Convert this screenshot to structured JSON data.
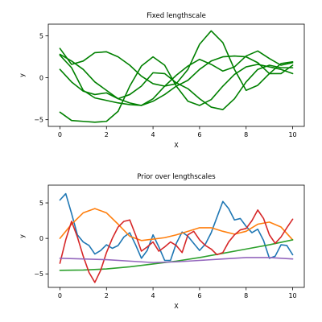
{
  "chart_data": [
    {
      "type": "line",
      "title": "Fixed lengthscale",
      "xlabel": "X",
      "ylabel": "y",
      "xlim": [
        -0.5,
        10.5
      ],
      "ylim": [
        -5.8,
        6.4
      ],
      "xticks": [
        0,
        2,
        4,
        6,
        8,
        10
      ],
      "yticks": [
        -5,
        0,
        5
      ],
      "grid": false,
      "x": [
        0,
        0.5,
        1,
        1.5,
        2,
        2.5,
        3,
        3.5,
        4,
        4.5,
        5,
        5.5,
        6,
        6.5,
        7,
        7.5,
        8,
        8.5,
        9,
        9.5,
        10
      ],
      "series": [
        {
          "color": "#008000",
          "values": [
            -4.1,
            -5.1,
            -5.2,
            -5.3,
            -5.2,
            -4.0,
            -1.0,
            1.4,
            2.5,
            1.5,
            -1.0,
            -2.8,
            -3.3,
            -2.6,
            -1.0,
            0.4,
            1.3,
            1.6,
            1.3,
            1.0,
            0.5
          ]
        },
        {
          "color": "#008000",
          "values": [
            3.5,
            1.6,
            2.0,
            3.0,
            3.1,
            2.5,
            1.5,
            0.2,
            -0.7,
            -1.0,
            -0.7,
            1.0,
            4.0,
            5.6,
            4.2,
            1.0,
            -1.5,
            -0.9,
            0.5,
            1.7,
            1.9
          ]
        },
        {
          "color": "#008000",
          "values": [
            2.8,
            2.0,
            1.0,
            -0.5,
            -1.5,
            -2.5,
            -3.0,
            -3.3,
            -2.8,
            -2.0,
            -1.0,
            -0.3,
            1.0,
            2.0,
            2.5,
            2.6,
            2.5,
            1.8,
            0.5,
            0.5,
            1.5
          ]
        },
        {
          "color": "#008000",
          "values": [
            1.0,
            -0.5,
            -1.6,
            -2.0,
            -1.8,
            -2.5,
            -2.0,
            -1.0,
            0.6,
            0.5,
            -0.6,
            -1.3,
            -2.5,
            -3.5,
            -3.8,
            -2.5,
            -0.5,
            1.0,
            1.5,
            1.2,
            1.2
          ]
        },
        {
          "color": "#008000",
          "values": [
            2.7,
            1.2,
            -1.5,
            -2.4,
            -2.7,
            -3.0,
            -3.2,
            -3.3,
            -2.5,
            -1.0,
            0.3,
            1.4,
            2.2,
            1.6,
            0.8,
            1.3,
            2.6,
            3.2,
            2.3,
            1.5,
            1.8
          ]
        }
      ]
    },
    {
      "type": "line",
      "title": "Prior over lengthscales",
      "xlabel": "X",
      "ylabel": "y",
      "xlim": [
        -0.5,
        10.5
      ],
      "ylim": [
        -6.9,
        7.5
      ],
      "xticks": [
        0,
        2,
        4,
        6,
        8,
        10
      ],
      "yticks": [
        -5,
        0,
        5
      ],
      "grid": false,
      "series": [
        {
          "color": "#1f77b4",
          "x": [
            0,
            0.25,
            0.5,
            0.75,
            1,
            1.25,
            1.5,
            1.75,
            2,
            2.25,
            2.5,
            2.75,
            3,
            3.25,
            3.5,
            3.75,
            4,
            4.25,
            4.5,
            4.75,
            5,
            5.25,
            5.5,
            5.75,
            6,
            6.25,
            6.5,
            6.75,
            7,
            7.25,
            7.5,
            7.75,
            8,
            8.25,
            8.5,
            8.75,
            9,
            9.25,
            9.5,
            9.75,
            10
          ],
          "values": [
            5.4,
            6.3,
            3.5,
            0.5,
            -0.5,
            -1.0,
            -2.2,
            -1.7,
            -0.9,
            -1.4,
            -1.0,
            0.2,
            0.8,
            -0.9,
            -2.8,
            -1.7,
            0.5,
            -1.2,
            -3.1,
            -3.1,
            -0.7,
            0.9,
            0.3,
            -0.7,
            -1.7,
            -0.8,
            0.8,
            3.0,
            5.2,
            4.2,
            2.6,
            2.8,
            1.7,
            0.8,
            1.3,
            -0.3,
            -2.8,
            -2.5,
            -0.9,
            -1.0,
            -2.3
          ]
        },
        {
          "color": "#ff7f0e",
          "x": [
            0,
            0.5,
            1,
            1.5,
            2,
            2.5,
            3,
            3.5,
            4,
            4.5,
            5,
            5.5,
            6,
            6.5,
            7,
            7.5,
            8,
            8.5,
            9,
            9.5,
            10
          ],
          "values": [
            0.0,
            2.0,
            3.6,
            4.2,
            3.6,
            2.0,
            0.3,
            -0.3,
            -0.1,
            0.1,
            0.5,
            1.0,
            1.5,
            1.5,
            1.0,
            0.6,
            1.0,
            2.0,
            2.3,
            1.6,
            -0.2
          ]
        },
        {
          "color": "#2ca02c",
          "x": [
            0,
            1,
            2,
            3,
            4,
            5,
            6,
            7,
            8,
            9,
            10
          ],
          "values": [
            -4.5,
            -4.45,
            -4.3,
            -4.0,
            -3.6,
            -3.2,
            -2.7,
            -2.1,
            -1.5,
            -0.9,
            -0.2
          ]
        },
        {
          "color": "#d62728",
          "x": [
            0,
            0.25,
            0.5,
            0.75,
            1,
            1.25,
            1.5,
            1.75,
            2,
            2.25,
            2.5,
            2.75,
            3,
            3.25,
            3.5,
            3.75,
            4,
            4.25,
            4.5,
            4.75,
            5,
            5.25,
            5.5,
            5.75,
            6,
            6.25,
            6.5,
            6.75,
            7,
            7.25,
            7.5,
            7.75,
            8,
            8.25,
            8.5,
            8.75,
            9,
            9.25,
            9.5,
            9.75,
            10
          ],
          "values": [
            -3.5,
            -0.2,
            2.4,
            0.2,
            -2.5,
            -4.8,
            -6.2,
            -4.5,
            -2.0,
            0.0,
            1.6,
            2.4,
            2.6,
            0.5,
            -1.8,
            -1.2,
            -0.5,
            -1.8,
            -1.2,
            -0.5,
            -1.0,
            -2.0,
            0.5,
            1.0,
            -0.2,
            -1.0,
            -1.5,
            -2.3,
            -2.0,
            -0.5,
            0.5,
            1.2,
            1.4,
            2.5,
            4.0,
            2.8,
            0.5,
            -0.7,
            0.2,
            1.5,
            2.7
          ]
        },
        {
          "color": "#9467bd",
          "x": [
            0,
            1,
            2,
            3,
            4,
            5,
            6,
            7,
            8,
            9,
            10
          ],
          "values": [
            -2.8,
            -2.9,
            -3.0,
            -3.2,
            -3.4,
            -3.3,
            -3.1,
            -2.9,
            -2.7,
            -2.7,
            -2.9
          ]
        }
      ]
    }
  ]
}
